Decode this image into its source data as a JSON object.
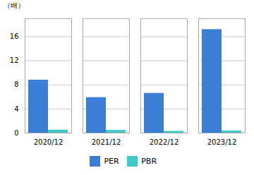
{
  "chart_data": {
    "type": "bar",
    "categories": [
      "2020/12",
      "2021/12",
      "2022/12",
      "2023/12"
    ],
    "series": [
      {
        "name": "PER",
        "color": "#3a7fd5",
        "values": [
          8.8,
          5.9,
          6.6,
          17.2
        ]
      },
      {
        "name": "PBR",
        "color": "#40c8c8",
        "values": [
          0.5,
          0.45,
          0.3,
          0.35
        ]
      }
    ],
    "ylabel": "（배）",
    "ylim": [
      0,
      19
    ],
    "yticks": [
      0,
      4,
      8,
      12,
      16
    ],
    "grid": true,
    "legend": "lower center"
  }
}
